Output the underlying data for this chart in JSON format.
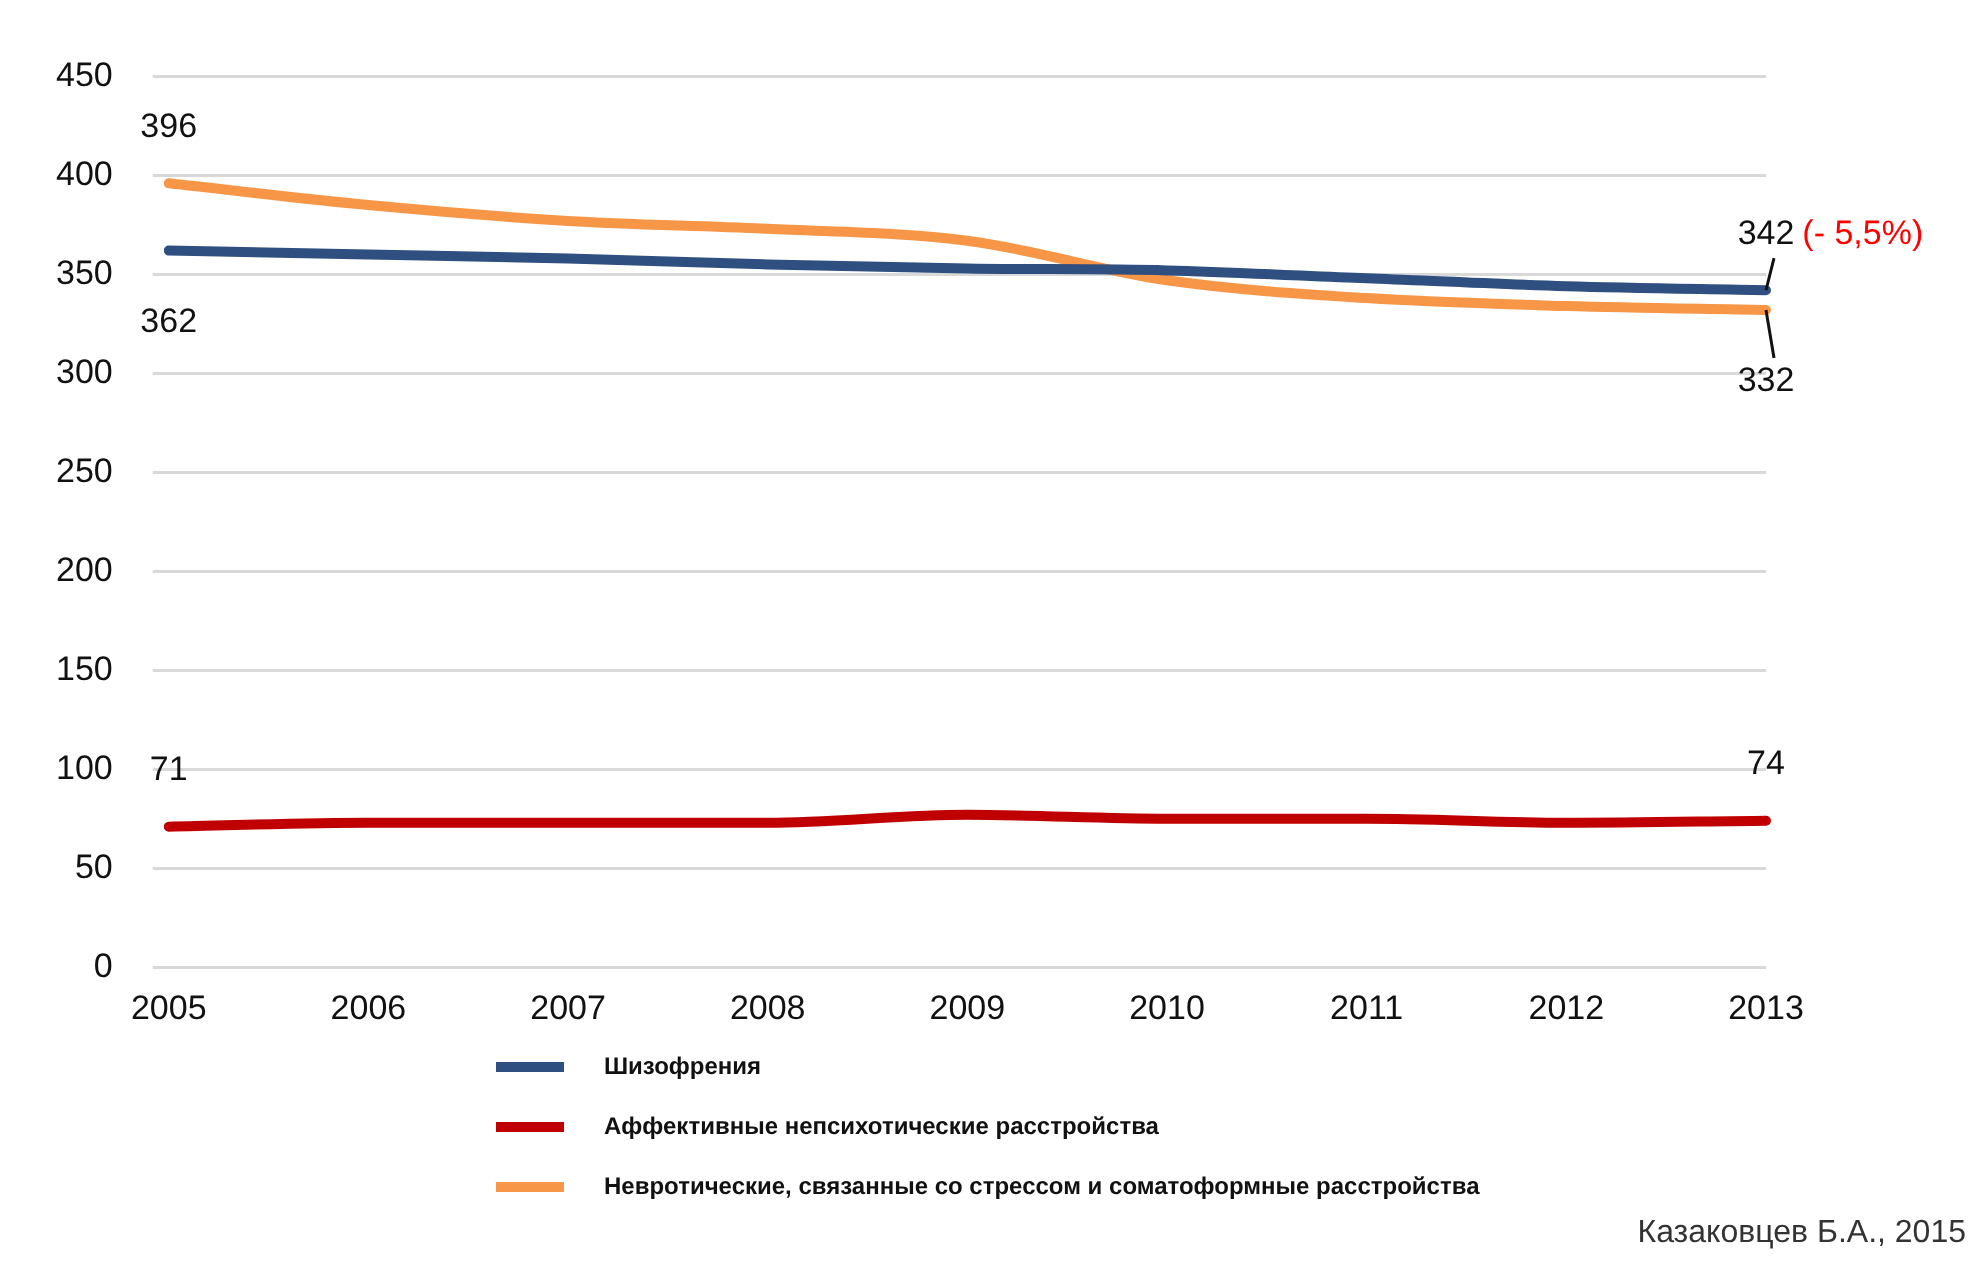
{
  "chart_data": {
    "type": "line",
    "categories": [
      "2005",
      "2006",
      "2007",
      "2008",
      "2009",
      "2010",
      "2011",
      "2012",
      "2013"
    ],
    "series": [
      {
        "name": "Шизофрения",
        "color": "#2e4f7f",
        "values": [
          362,
          360,
          358,
          355,
          353,
          352,
          348,
          344,
          342
        ],
        "value_labels": [
          "362",
          null,
          null,
          null,
          null,
          null,
          null,
          null,
          "342"
        ]
      },
      {
        "name": "Аффективные непсихотические расстройства",
        "color": "#c00000",
        "values": [
          71,
          73,
          73,
          73,
          77,
          75,
          75,
          73,
          74
        ],
        "value_labels": [
          "71",
          null,
          null,
          null,
          null,
          null,
          null,
          null,
          "74"
        ]
      },
      {
        "name": "Невротические, связанные со стрессом и соматоформные расстройства",
        "color": "#f79646",
        "values": [
          396,
          385,
          377,
          373,
          367,
          347,
          338,
          334,
          332
        ],
        "value_labels": [
          "396",
          null,
          null,
          null,
          null,
          null,
          null,
          null,
          "332"
        ]
      }
    ],
    "ylim": [
      0,
      450
    ],
    "yticks": [
      0,
      50,
      100,
      150,
      200,
      250,
      300,
      350,
      400,
      450
    ],
    "grid": "y",
    "legend": "bottom",
    "marker": "none",
    "line_style": "solid",
    "annotations": [
      {
        "text": "(- 5,5%)",
        "x": "2013",
        "y": 342
      },
      "Казаковцев Б.А., 2015"
    ]
  }
}
